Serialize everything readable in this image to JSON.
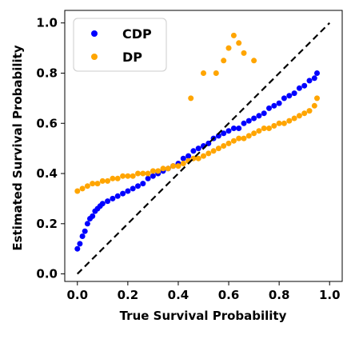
{
  "chart_data": {
    "type": "scatter",
    "title": "",
    "xlabel": "True Survival Probability",
    "ylabel": "Estimated Survival Probability",
    "xlim": [
      -0.05,
      1.05
    ],
    "ylim": [
      -0.03,
      1.05
    ],
    "xticks": [
      0.0,
      0.2,
      0.4,
      0.6,
      0.8,
      1.0
    ],
    "yticks": [
      0.0,
      0.2,
      0.4,
      0.6,
      0.8,
      1.0
    ],
    "xtick_labels": [
      "0.0",
      "0.2",
      "0.4",
      "0.6",
      "0.8",
      "1.0"
    ],
    "ytick_labels": [
      "0.0",
      "0.2",
      "0.4",
      "0.6",
      "0.8",
      "1.0"
    ],
    "grid": false,
    "legend_position": "top-left",
    "reference_line": {
      "style": "dashed",
      "color": "#000000",
      "from": [
        0,
        0
      ],
      "to": [
        1,
        1
      ]
    },
    "series": [
      {
        "name": "CDP",
        "color": "#0000ff",
        "x": [
          0.0,
          0.01,
          0.02,
          0.03,
          0.04,
          0.05,
          0.06,
          0.07,
          0.08,
          0.09,
          0.1,
          0.12,
          0.14,
          0.16,
          0.18,
          0.2,
          0.22,
          0.24,
          0.26,
          0.28,
          0.3,
          0.32,
          0.34,
          0.36,
          0.38,
          0.4,
          0.42,
          0.44,
          0.46,
          0.48,
          0.5,
          0.52,
          0.54,
          0.56,
          0.58,
          0.6,
          0.62,
          0.64,
          0.66,
          0.68,
          0.7,
          0.72,
          0.74,
          0.76,
          0.78,
          0.8,
          0.82,
          0.84,
          0.86,
          0.88,
          0.9,
          0.92,
          0.94,
          0.95
        ],
        "y": [
          0.1,
          0.12,
          0.15,
          0.17,
          0.2,
          0.22,
          0.23,
          0.25,
          0.26,
          0.27,
          0.28,
          0.29,
          0.3,
          0.31,
          0.32,
          0.33,
          0.34,
          0.35,
          0.36,
          0.38,
          0.39,
          0.4,
          0.41,
          0.42,
          0.43,
          0.44,
          0.46,
          0.47,
          0.49,
          0.5,
          0.51,
          0.52,
          0.54,
          0.55,
          0.56,
          0.57,
          0.58,
          0.58,
          0.6,
          0.61,
          0.62,
          0.63,
          0.64,
          0.66,
          0.67,
          0.68,
          0.7,
          0.71,
          0.72,
          0.74,
          0.75,
          0.77,
          0.78,
          0.8
        ]
      },
      {
        "name": "DP",
        "color": "#ffa500",
        "x": [
          0.0,
          0.02,
          0.04,
          0.06,
          0.08,
          0.1,
          0.12,
          0.14,
          0.16,
          0.18,
          0.2,
          0.22,
          0.24,
          0.26,
          0.28,
          0.3,
          0.32,
          0.34,
          0.36,
          0.38,
          0.4,
          0.42,
          0.44,
          0.46,
          0.48,
          0.5,
          0.52,
          0.54,
          0.56,
          0.58,
          0.6,
          0.62,
          0.64,
          0.66,
          0.68,
          0.7,
          0.72,
          0.74,
          0.76,
          0.78,
          0.8,
          0.82,
          0.84,
          0.86,
          0.88,
          0.9,
          0.92,
          0.94,
          0.95,
          0.55,
          0.58,
          0.6,
          0.62,
          0.64,
          0.66,
          0.7,
          0.45,
          0.5
        ],
        "y": [
          0.33,
          0.34,
          0.35,
          0.36,
          0.36,
          0.37,
          0.37,
          0.38,
          0.38,
          0.39,
          0.39,
          0.39,
          0.4,
          0.4,
          0.4,
          0.41,
          0.41,
          0.42,
          0.42,
          0.43,
          0.43,
          0.44,
          0.45,
          0.46,
          0.46,
          0.47,
          0.48,
          0.49,
          0.5,
          0.51,
          0.52,
          0.53,
          0.54,
          0.54,
          0.55,
          0.56,
          0.57,
          0.58,
          0.58,
          0.59,
          0.6,
          0.6,
          0.61,
          0.62,
          0.63,
          0.64,
          0.65,
          0.67,
          0.7,
          0.8,
          0.85,
          0.9,
          0.95,
          0.92,
          0.88,
          0.85,
          0.7,
          0.8
        ]
      }
    ]
  }
}
